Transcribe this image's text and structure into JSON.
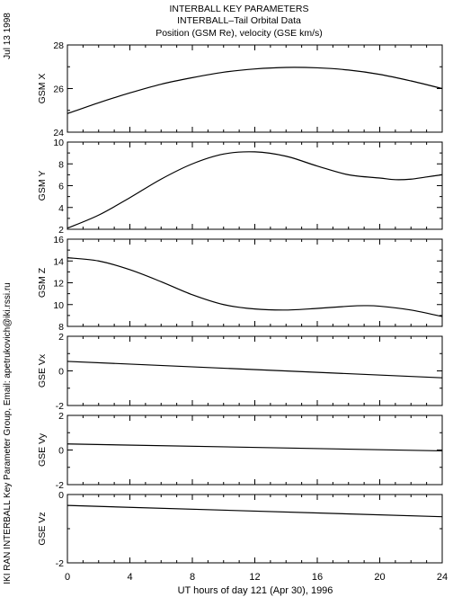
{
  "header": {
    "line1": "INTERBALL KEY PARAMETERS",
    "line2": "INTERBALL–Tail Orbital Data",
    "line3": "Position (GSM Re), velocity (GSE km/s)"
  },
  "side_date": "Jul 13 1998",
  "side_credit": "IKI RAN INTERBALL Key Parameter Group, Email: apetrukovich@iki.rssi.ru",
  "chart_data": {
    "type": "line",
    "xlabel": "UT hours of day 121 (Apr 30), 1996",
    "xlim": [
      0,
      24
    ],
    "xticks": [
      0,
      4,
      8,
      12,
      16,
      20,
      24
    ],
    "panels": [
      {
        "name": "GSM X",
        "ylim": [
          24,
          28
        ],
        "yticks": [
          24,
          26,
          28
        ],
        "x": [
          0,
          2,
          4,
          6,
          8,
          10,
          12,
          14,
          16,
          18,
          20,
          22,
          24
        ],
        "y": [
          24.85,
          25.35,
          25.8,
          26.2,
          26.5,
          26.75,
          26.9,
          26.97,
          26.95,
          26.85,
          26.65,
          26.35,
          26.0
        ]
      },
      {
        "name": "GSM Y",
        "ylim": [
          2,
          10
        ],
        "yticks": [
          2,
          4,
          6,
          8,
          10
        ],
        "x": [
          0,
          2,
          4,
          6,
          8,
          10,
          12,
          14,
          16,
          18,
          20,
          21,
          22,
          23,
          24
        ],
        "y": [
          2.1,
          3.3,
          4.9,
          6.6,
          8.0,
          8.9,
          9.1,
          8.7,
          7.8,
          7.0,
          6.7,
          6.55,
          6.6,
          6.8,
          7.0
        ]
      },
      {
        "name": "GSM Z",
        "ylim": [
          8,
          16
        ],
        "yticks": [
          8,
          10,
          12,
          14,
          16
        ],
        "x": [
          0,
          2,
          4,
          6,
          8,
          10,
          12,
          14,
          16,
          18,
          19,
          20,
          22,
          24
        ],
        "y": [
          14.3,
          14.0,
          13.2,
          12.1,
          10.9,
          10.0,
          9.6,
          9.5,
          9.65,
          9.85,
          9.9,
          9.85,
          9.5,
          8.9
        ]
      },
      {
        "name": "GSE Vx",
        "ylim": [
          -2,
          2
        ],
        "yticks": [
          -2,
          0,
          2
        ],
        "x": [
          0,
          24
        ],
        "y": [
          0.55,
          -0.4
        ]
      },
      {
        "name": "GSE Vy",
        "ylim": [
          -2,
          2
        ],
        "yticks": [
          -2,
          0,
          2
        ],
        "x": [
          0,
          24
        ],
        "y": [
          0.35,
          -0.05
        ]
      },
      {
        "name": "GSE Vz",
        "ylim": [
          -2,
          0
        ],
        "yticks": [
          -2,
          0
        ],
        "x": [
          0,
          24
        ],
        "y": [
          -0.32,
          -0.65
        ]
      }
    ]
  }
}
